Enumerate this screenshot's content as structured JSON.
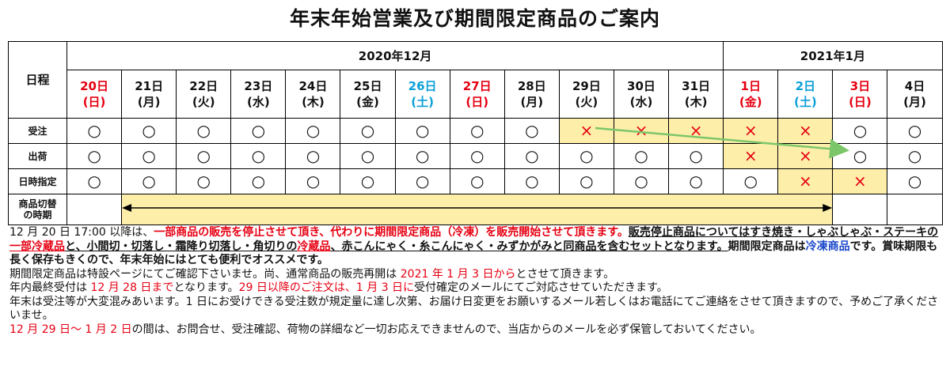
{
  "title": "年末年始営業及び期間限定商品のご案内",
  "months": [
    {
      "label": "2020年12月",
      "span": 12
    },
    {
      "label": "2021年1月",
      "span": 4
    }
  ],
  "row_labels": {
    "schedule": "日程",
    "order": "受注",
    "shipping": "出荷",
    "date_spec": "日時指定",
    "product_switch_line1": "商品切替",
    "product_switch_line2": "の時期"
  },
  "days": [
    {
      "date": "20日",
      "weekday": "(日)",
      "color": "red"
    },
    {
      "date": "21日",
      "weekday": "(月)",
      "color": "black"
    },
    {
      "date": "22日",
      "weekday": "(火)",
      "color": "black"
    },
    {
      "date": "23日",
      "weekday": "(水)",
      "color": "black"
    },
    {
      "date": "24日",
      "weekday": "(木)",
      "color": "black"
    },
    {
      "date": "25日",
      "weekday": "(金)",
      "color": "black"
    },
    {
      "date": "26日",
      "weekday": "(土)",
      "color": "blue"
    },
    {
      "date": "27日",
      "weekday": "(日)",
      "color": "red"
    },
    {
      "date": "28日",
      "weekday": "(月)",
      "color": "black"
    },
    {
      "date": "29日",
      "weekday": "(火)",
      "color": "black"
    },
    {
      "date": "30日",
      "weekday": "(水)",
      "color": "black"
    },
    {
      "date": "31日",
      "weekday": "(木)",
      "color": "black"
    },
    {
      "date": "1日",
      "weekday": "(金)",
      "color": "red"
    },
    {
      "date": "2日",
      "weekday": "(土)",
      "color": "blue"
    },
    {
      "date": "3日",
      "weekday": "(日)",
      "color": "red"
    },
    {
      "date": "4日",
      "weekday": "(月)",
      "color": "black"
    }
  ],
  "marks": {
    "ok": "○",
    "ng": "×"
  },
  "order": [
    "ok",
    "ok",
    "ok",
    "ok",
    "ok",
    "ok",
    "ok",
    "ok",
    "ok",
    "ng",
    "ng",
    "ng",
    "ng",
    "ng",
    "ok",
    "ok"
  ],
  "shipping": [
    "ok",
    "ok",
    "ok",
    "ok",
    "ok",
    "ok",
    "ok",
    "ok",
    "ok",
    "ok",
    "ok",
    "ok",
    "ng",
    "ng",
    "ok",
    "ok"
  ],
  "date_spec": [
    "ok",
    "ok",
    "ok",
    "ok",
    "ok",
    "ok",
    "ok",
    "ok",
    "ok",
    "ok",
    "ok",
    "ok",
    "ok",
    "ng",
    "ng",
    "ok"
  ],
  "highlight": {
    "order": [
      false,
      false,
      false,
      false,
      false,
      false,
      false,
      false,
      false,
      true,
      true,
      true,
      true,
      true,
      false,
      false
    ],
    "shipping": [
      false,
      false,
      false,
      false,
      false,
      false,
      false,
      false,
      false,
      false,
      false,
      false,
      true,
      true,
      false,
      false
    ],
    "date_spec": [
      false,
      false,
      false,
      false,
      false,
      false,
      false,
      false,
      false,
      false,
      false,
      false,
      false,
      true,
      true,
      false
    ]
  },
  "colors": {
    "red": "#e60012",
    "blue": "#0aa0d8",
    "highlight": "#fdeeaa",
    "arrow": "#7cc66a",
    "link_blue": "#1a47c9"
  },
  "notes": {
    "p1": [
      {
        "t": "12 月 20 日 17:00 以降は、",
        "s": ""
      },
      {
        "t": "一部商品の販売を停止させて頂き、代わりに期間限定商品（冷凍）を販売開始させて頂きます。",
        "s": "b r"
      },
      {
        "t": "販売停止商品についてはすき焼き・しゃぶしゃぶ・ステーキの",
        "s": "b u"
      },
      {
        "t": "一部冷蔵品",
        "s": "b u r"
      },
      {
        "t": "と、小間切・切落し・霜降り切落し・角切りの",
        "s": "b u"
      },
      {
        "t": "冷蔵品",
        "s": "b u r"
      },
      {
        "t": "、赤こんにゃく・糸こんにゃく・みずかがみと同商品を含むセットとなります。",
        "s": "b u"
      },
      {
        "t": "期間限定商品は",
        "s": "b"
      },
      {
        "t": "冷凍商品",
        "s": "b bl"
      },
      {
        "t": "です。賞味期限も長く保存もきくので、年末年始にはとても便利でオススメです。",
        "s": "b"
      }
    ],
    "p2": [
      {
        "t": "期間限定商品は特設ページにてご確認下さいませ。尚、通常商品の販売再開は",
        "s": ""
      },
      {
        "t": " 2021 年 1 月 3 日から",
        "s": "r"
      },
      {
        "t": "とさせて頂きます。",
        "s": ""
      }
    ],
    "p3": [
      {
        "t": "年内最終受付は",
        "s": ""
      },
      {
        "t": " 12 月 28 日まで",
        "s": "r"
      },
      {
        "t": "となります。",
        "s": ""
      },
      {
        "t": "29 日以降のご注文は、1 月 3 日に",
        "s": "r"
      },
      {
        "t": "受付確定のメールにてご対応させていただきます。",
        "s": ""
      }
    ],
    "p4": [
      {
        "t": "年末は受注等が大変混みあいます。1 日にお受けできる受注数が規定量に達し次第、お届け日変更をお願いするメール若しくはお電話にてご連絡をさせて頂きますので、予めご了承くださいませ。",
        "s": ""
      }
    ],
    "p5": [
      {
        "t": "12 月 29 日～ 1 月 2 日",
        "s": "r"
      },
      {
        "t": "の間は、お問合せ、受注確認、荷物の詳細など一切お応えできませんので、当店からのメールを必ず保管しておいてください。",
        "s": ""
      }
    ]
  }
}
